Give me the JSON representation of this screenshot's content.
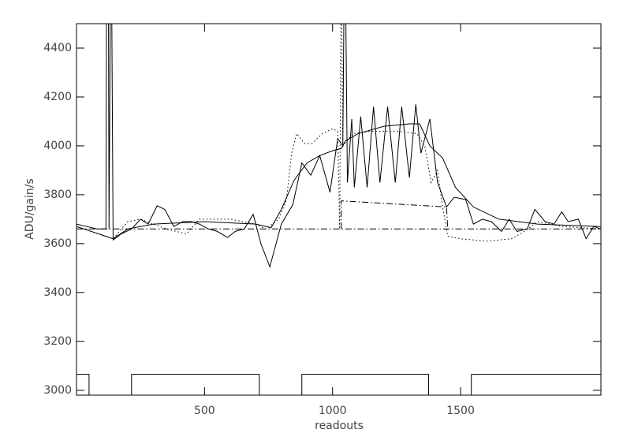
{
  "chart_data": {
    "type": "line",
    "xlabel": "readouts",
    "ylabel": "ADU/gain/s",
    "xlim": [
      0,
      2048
    ],
    "ylim": [
      2980,
      4500
    ],
    "xticks": [
      500,
      1000,
      1500
    ],
    "yticks": [
      3000,
      3200,
      3400,
      3600,
      3800,
      4000,
      4200,
      4400
    ],
    "series": [
      {
        "color": "#000000",
        "dash": "solid",
        "x": [
          0,
          40,
          80,
          115,
          117,
          125,
          127,
          132,
          138,
          143,
          175,
          215,
          250,
          280,
          315,
          345,
          380,
          415,
          450,
          480,
          515,
          550,
          590,
          620,
          655,
          690,
          720,
          755,
          800,
          845,
          880,
          915,
          950,
          990,
          1020,
          1040,
          1044,
          1052,
          1058,
          1075,
          1085,
          1110,
          1135,
          1160,
          1185,
          1215,
          1245,
          1270,
          1300,
          1325,
          1345,
          1380,
          1410,
          1445,
          1475,
          1520,
          1550,
          1585,
          1620,
          1660,
          1690,
          1720,
          1760,
          1790,
          1830,
          1865,
          1895,
          1920,
          1960,
          1990,
          2020,
          2048
        ],
        "values": [
          3680,
          3670,
          3660,
          3660,
          4500,
          4500,
          3660,
          4500,
          4500,
          3615,
          3640,
          3660,
          3700,
          3680,
          3755,
          3740,
          3670,
          3690,
          3690,
          3680,
          3660,
          3650,
          3625,
          3650,
          3660,
          3720,
          3600,
          3505,
          3680,
          3760,
          3930,
          3880,
          3960,
          3810,
          4030,
          4000,
          4500,
          4500,
          3850,
          4110,
          3830,
          4120,
          3830,
          4160,
          3850,
          4160,
          3850,
          4160,
          3870,
          4170,
          3970,
          4110,
          3850,
          3750,
          3790,
          3780,
          3680,
          3700,
          3690,
          3650,
          3700,
          3650,
          3660,
          3740,
          3690,
          3680,
          3730,
          3690,
          3700,
          3620,
          3670,
          3660
        ]
      },
      {
        "color": "#000000",
        "dash": "solid",
        "x": [
          0,
          143,
          200,
          300,
          500,
          700,
          760,
          800,
          850,
          900,
          950,
          1000,
          1035,
          1050,
          1100,
          1200,
          1300,
          1340,
          1380,
          1430,
          1480,
          1550,
          1650,
          1800,
          2048
        ],
        "values": [
          3670,
          3620,
          3660,
          3680,
          3690,
          3680,
          3665,
          3740,
          3860,
          3930,
          3960,
          3980,
          3990,
          4020,
          4050,
          4080,
          4090,
          4090,
          4000,
          3950,
          3830,
          3750,
          3700,
          3680,
          3670
        ]
      },
      {
        "color": "#000000",
        "dash": "dotted",
        "x": [
          0,
          143,
          200,
          250,
          300,
          350,
          430,
          480,
          600,
          700,
          740,
          790,
          820,
          840,
          860,
          890,
          920,
          960,
          1000,
          1020,
          1028,
          1032,
          1036,
          1040,
          1080,
          1150,
          1250,
          1330,
          1360,
          1385,
          1410,
          1430,
          1450,
          1500,
          1600,
          1700,
          1750,
          1800,
          1900,
          2048
        ],
        "values": [
          3670,
          3620,
          3690,
          3700,
          3680,
          3660,
          3640,
          3700,
          3700,
          3680,
          3660,
          3700,
          3780,
          3970,
          4050,
          4010,
          4010,
          4050,
          4070,
          4060,
          3660,
          4500,
          4500,
          4000,
          4050,
          4060,
          4060,
          4050,
          4000,
          3850,
          3900,
          3750,
          3630,
          3620,
          3610,
          3620,
          3650,
          3690,
          3670,
          3660
        ]
      },
      {
        "color": "#000000",
        "dash": "dashdot",
        "x": [
          0,
          2048
        ],
        "values": [
          3660,
          3660
        ]
      },
      {
        "color": "#000000",
        "dash": "dashdot",
        "x": [
          1034,
          1034,
          1445,
          1450
        ],
        "values": [
          3660,
          3775,
          3750,
          3660
        ]
      },
      {
        "color": "#000000",
        "dash": "solid",
        "x": [
          0,
          49,
          49,
          215,
          215,
          714,
          714,
          880,
          880,
          1375,
          1375,
          1542,
          1542,
          2048
        ],
        "values": [
          3065,
          3065,
          2980,
          2980,
          3065,
          3065,
          2980,
          2980,
          3065,
          3065,
          2980,
          2980,
          3065,
          3065
        ]
      }
    ]
  }
}
